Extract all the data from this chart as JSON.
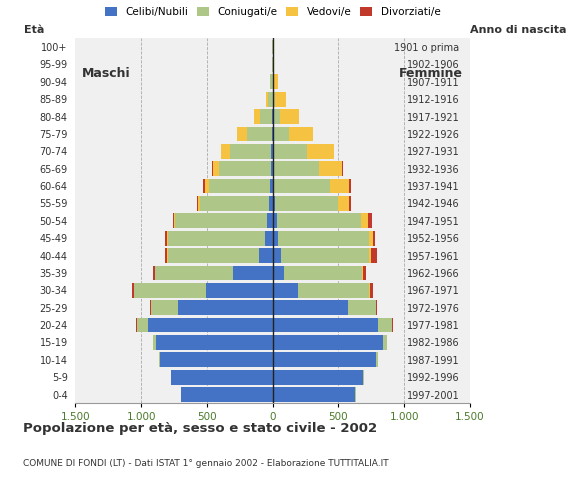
{
  "age_groups_bottom_to_top": [
    "0-4",
    "5-9",
    "10-14",
    "15-19",
    "20-24",
    "25-29",
    "30-34",
    "35-39",
    "40-44",
    "45-49",
    "50-54",
    "55-59",
    "60-64",
    "65-69",
    "70-74",
    "75-79",
    "80-84",
    "85-89",
    "90-94",
    "95-99",
    "100+"
  ],
  "birth_years_bottom_to_top": [
    "1997-2001",
    "1992-1996",
    "1987-1991",
    "1982-1986",
    "1977-1981",
    "1972-1976",
    "1967-1971",
    "1962-1966",
    "1957-1961",
    "1952-1956",
    "1947-1951",
    "1942-1946",
    "1937-1941",
    "1932-1936",
    "1927-1931",
    "1922-1926",
    "1917-1921",
    "1912-1916",
    "1907-1911",
    "1902-1906",
    "1901 o prima"
  ],
  "males_celibe_b2t": [
    695,
    770,
    860,
    890,
    950,
    720,
    510,
    300,
    100,
    55,
    45,
    25,
    20,
    15,
    10,
    5,
    5,
    0,
    0,
    0,
    0
  ],
  "males_coniugato_b2t": [
    1,
    2,
    5,
    20,
    85,
    205,
    545,
    595,
    695,
    740,
    695,
    525,
    465,
    395,
    315,
    190,
    90,
    35,
    18,
    5,
    2
  ],
  "males_vedovo_b2t": [
    0,
    0,
    0,
    0,
    0,
    1,
    2,
    2,
    5,
    5,
    10,
    16,
    27,
    42,
    65,
    75,
    45,
    18,
    5,
    0,
    0
  ],
  "males_divorziato_b2t": [
    0,
    0,
    0,
    1,
    2,
    5,
    15,
    10,
    15,
    15,
    10,
    10,
    15,
    10,
    5,
    0,
    0,
    0,
    0,
    0,
    0
  ],
  "females_nubile_b2t": [
    630,
    690,
    790,
    840,
    800,
    570,
    190,
    85,
    65,
    40,
    30,
    15,
    10,
    5,
    5,
    0,
    0,
    0,
    0,
    0,
    0
  ],
  "females_coniugata_b2t": [
    1,
    2,
    8,
    30,
    110,
    215,
    545,
    595,
    665,
    695,
    645,
    485,
    425,
    345,
    255,
    125,
    55,
    18,
    8,
    3,
    1
  ],
  "females_vedova_b2t": [
    0,
    0,
    0,
    0,
    1,
    2,
    5,
    8,
    16,
    26,
    52,
    82,
    145,
    175,
    205,
    185,
    145,
    85,
    32,
    10,
    3
  ],
  "females_divorziata_b2t": [
    0,
    0,
    0,
    1,
    5,
    10,
    20,
    20,
    50,
    20,
    30,
    15,
    20,
    10,
    5,
    0,
    0,
    0,
    0,
    0,
    0
  ],
  "colors": {
    "celibe": "#4472c4",
    "coniugato": "#aec788",
    "vedovo": "#f5c242",
    "divorziato": "#c0392b"
  },
  "xlim": 1500,
  "title": "Popolazione per età, sesso e stato civile - 2002",
  "subtitle": "COMUNE DI FONDI (LT) - Dati ISTAT 1° gennaio 2002 - Elaborazione TUTTITALIA.IT",
  "legend_labels": [
    "Celibi/Nubili",
    "Coniugati/e",
    "Vedovi/e",
    "Divorziati/e"
  ],
  "xlabel_left": "Maschi",
  "xlabel_right": "Femmine",
  "ylabel": "Età",
  "ylabel_right": "Anno di nascita",
  "bg_color": "#ffffff",
  "plot_bg_color": "#f0f0f0",
  "bar_height": 0.85
}
